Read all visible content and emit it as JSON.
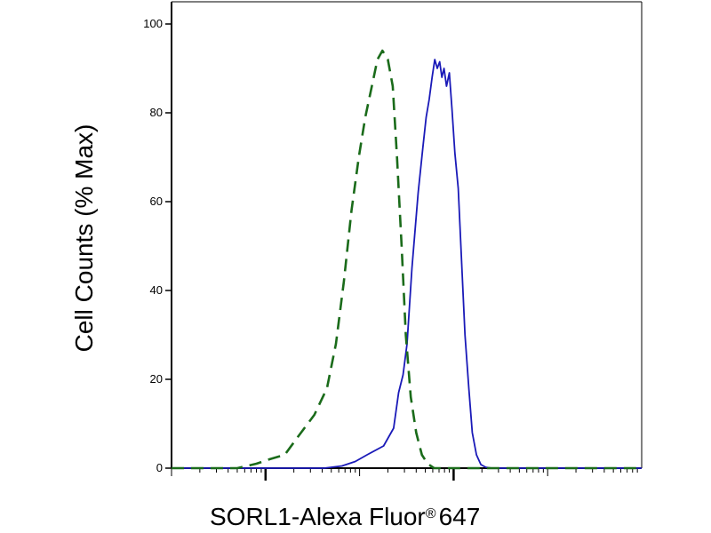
{
  "chart_data": {
    "type": "line",
    "title": "",
    "xlabel": "SORL1-Alexa Fluor",
    "xlabel_symbol": "®",
    "xlabel_suffix": "647",
    "ylabel": "Cell Counts (% Max)",
    "xscale": "log",
    "xlim": [
      10,
      1000000
    ],
    "ylim": [
      0,
      100
    ],
    "yticks": [
      0,
      20,
      40,
      60,
      80,
      100
    ],
    "ytick_labels": [
      "0",
      "20",
      "40",
      "60",
      "80",
      "100"
    ],
    "major_xticks": [
      100,
      10000
    ],
    "grid": false,
    "legend": "none",
    "series": [
      {
        "color": "#1a1ab8",
        "style": "solid",
        "x": [
          10,
          300,
          420,
          650,
          900,
          1200,
          1800,
          2300,
          2600,
          2900,
          3200,
          3600,
          4200,
          4700,
          5100,
          5500,
          5900,
          6300,
          6700,
          7100,
          7500,
          7900,
          8400,
          9000,
          9600,
          10300,
          11200,
          12200,
          13200,
          14500,
          15800,
          17500,
          19500,
          22000,
          25500,
          29000,
          33000,
          40000,
          60000,
          100000,
          300000,
          1000000
        ],
        "y": [
          0,
          0,
          0,
          0.5,
          1.5,
          3,
          5,
          9,
          17,
          21,
          28,
          45,
          62,
          72,
          79,
          83,
          88,
          92,
          90,
          91.5,
          88,
          90,
          86,
          89,
          81,
          71,
          63,
          46,
          30,
          18,
          8,
          3,
          0.8,
          0.2,
          0,
          0,
          0,
          0,
          0,
          0,
          0,
          0
        ]
      },
      {
        "color": "#1a6b1a",
        "style": "dashed",
        "x": [
          10,
          50,
          80,
          110,
          160,
          220,
          330,
          450,
          560,
          680,
          820,
          980,
          1150,
          1350,
          1550,
          1750,
          2000,
          2250,
          2500,
          2800,
          3100,
          3500,
          4000,
          4600,
          5300,
          6200,
          7500,
          9000,
          12000,
          20000,
          1000000
        ],
        "y": [
          0,
          0,
          1,
          2,
          3,
          7,
          12,
          18,
          28,
          42,
          58,
          70,
          79,
          86,
          92,
          94,
          92,
          86,
          70,
          50,
          30,
          16,
          8,
          3,
          1,
          0,
          0,
          0,
          0,
          0,
          0
        ]
      }
    ]
  }
}
